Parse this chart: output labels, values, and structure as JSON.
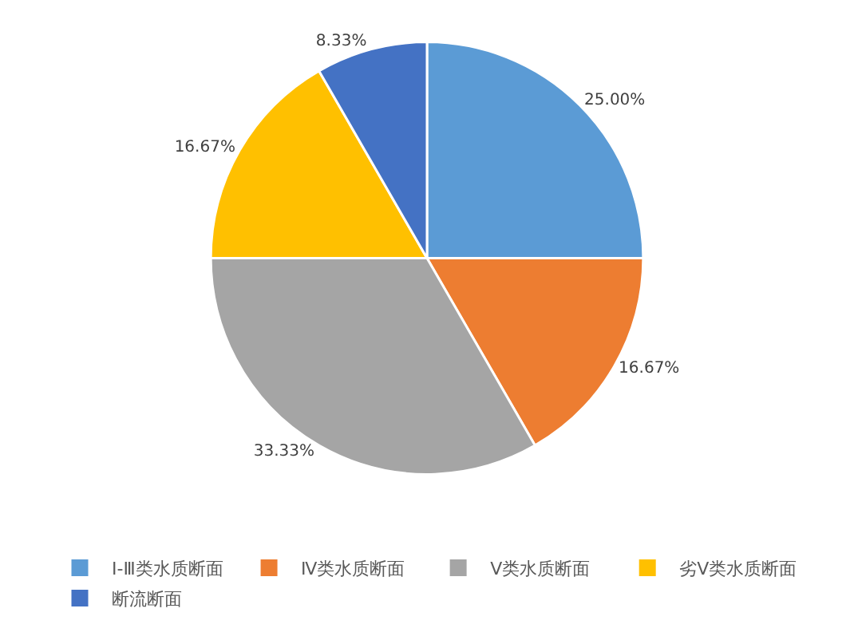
{
  "chart_data": {
    "type": "pie",
    "categories": [
      "Ⅰ-Ⅲ类水质断面",
      "Ⅳ类水质断面",
      "Ⅴ类水质断面",
      "劣Ⅴ类水质断面",
      "断流断面"
    ],
    "values": [
      25.0,
      16.67,
      33.33,
      16.67,
      8.33
    ],
    "colors": [
      "#5b9bd5",
      "#ed7d31",
      "#a5a5a5",
      "#ffc000",
      "#4472c4"
    ],
    "value_labels": [
      "25.00%",
      "16.67%",
      "33.33%",
      "16.67%",
      "8.33%"
    ],
    "legend": "bottom"
  }
}
